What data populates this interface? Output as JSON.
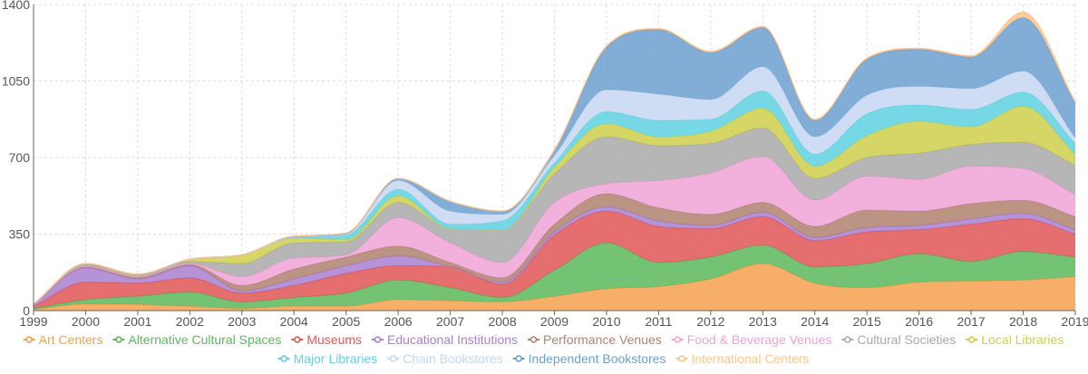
{
  "chart_data": {
    "type": "area",
    "stacked": true,
    "smooth": true,
    "title": "",
    "xlabel": "",
    "ylabel": "",
    "ylim": [
      0,
      1400
    ],
    "y_ticks": [
      "0",
      "350",
      "700",
      "1050",
      "1400"
    ],
    "x_categories": [
      "1999",
      "2000",
      "2001",
      "2002",
      "2003",
      "2004",
      "2005",
      "2006",
      "2007",
      "2008",
      "2009",
      "2010",
      "2011",
      "2012",
      "2013",
      "2014",
      "2015",
      "2016",
      "2017",
      "2018",
      "2019"
    ],
    "grid": true,
    "legend_position": "bottom",
    "series": [
      {
        "name": "Art Centers",
        "color": "#f5a04e",
        "values": [
          5,
          30,
          28,
          20,
          10,
          20,
          20,
          50,
          45,
          40,
          65,
          100,
          110,
          145,
          215,
          125,
          105,
          130,
          135,
          140,
          155
        ]
      },
      {
        "name": "Alternative Cultural Spaces",
        "color": "#5cb85c",
        "values": [
          5,
          20,
          38,
          65,
          30,
          40,
          60,
          90,
          60,
          20,
          120,
          210,
          110,
          100,
          85,
          75,
          110,
          130,
          90,
          130,
          90
        ]
      },
      {
        "name": "Museums",
        "color": "#e15656",
        "values": [
          10,
          80,
          60,
          65,
          40,
          55,
          90,
          65,
          95,
          60,
          160,
          145,
          165,
          130,
          130,
          120,
          145,
          110,
          170,
          150,
          105
        ]
      },
      {
        "name": "Educational Institutions",
        "color": "#a97fd0",
        "values": [
          10,
          65,
          20,
          55,
          10,
          30,
          35,
          45,
          0,
          10,
          15,
          20,
          25,
          15,
          20,
          15,
          20,
          20,
          25,
          25,
          20
        ]
      },
      {
        "name": "Performance Venues",
        "color": "#b0816f",
        "values": [
          0,
          5,
          5,
          5,
          25,
          45,
          40,
          45,
          20,
          20,
          35,
          60,
          60,
          50,
          45,
          50,
          80,
          65,
          70,
          60,
          60
        ]
      },
      {
        "name": "Food & Beverage Venues",
        "color": "#eea3d6",
        "values": [
          0,
          5,
          5,
          5,
          40,
          50,
          10,
          130,
          90,
          70,
          100,
          45,
          125,
          190,
          210,
          120,
          155,
          145,
          170,
          145,
          100
        ]
      },
      {
        "name": "Cultural Societies",
        "color": "#a9a9a9",
        "values": [
          0,
          5,
          5,
          10,
          60,
          70,
          60,
          70,
          65,
          150,
          130,
          215,
          160,
          135,
          130,
          100,
          85,
          120,
          100,
          120,
          135
        ]
      },
      {
        "name": "Local Libraries",
        "color": "#cfcf4b",
        "values": [
          0,
          5,
          5,
          10,
          40,
          20,
          10,
          30,
          0,
          0,
          30,
          60,
          40,
          55,
          90,
          55,
          100,
          145,
          80,
          165,
          50
        ]
      },
      {
        "name": "Major Libraries",
        "color": "#5fd1e0",
        "values": [
          0,
          0,
          0,
          0,
          0,
          5,
          20,
          30,
          20,
          40,
          20,
          55,
          75,
          55,
          80,
          55,
          100,
          75,
          80,
          65,
          50
        ]
      },
      {
        "name": "Chain Bookstores",
        "color": "#c6d7f1",
        "values": [
          0,
          0,
          0,
          0,
          0,
          0,
          5,
          40,
          60,
          30,
          35,
          100,
          120,
          90,
          110,
          80,
          85,
          85,
          95,
          95,
          25
        ]
      },
      {
        "name": "Independent Bookstores",
        "color": "#6b9fcf",
        "values": [
          0,
          0,
          0,
          0,
          0,
          5,
          5,
          10,
          45,
          15,
          25,
          195,
          295,
          215,
          180,
          75,
          165,
          170,
          145,
          245,
          160
        ]
      },
      {
        "name": "International Centers",
        "color": "#ffc48a",
        "values": [
          0,
          0,
          0,
          0,
          0,
          0,
          0,
          0,
          0,
          0,
          0,
          5,
          5,
          5,
          5,
          5,
          5,
          5,
          5,
          25,
          5
        ]
      }
    ]
  }
}
